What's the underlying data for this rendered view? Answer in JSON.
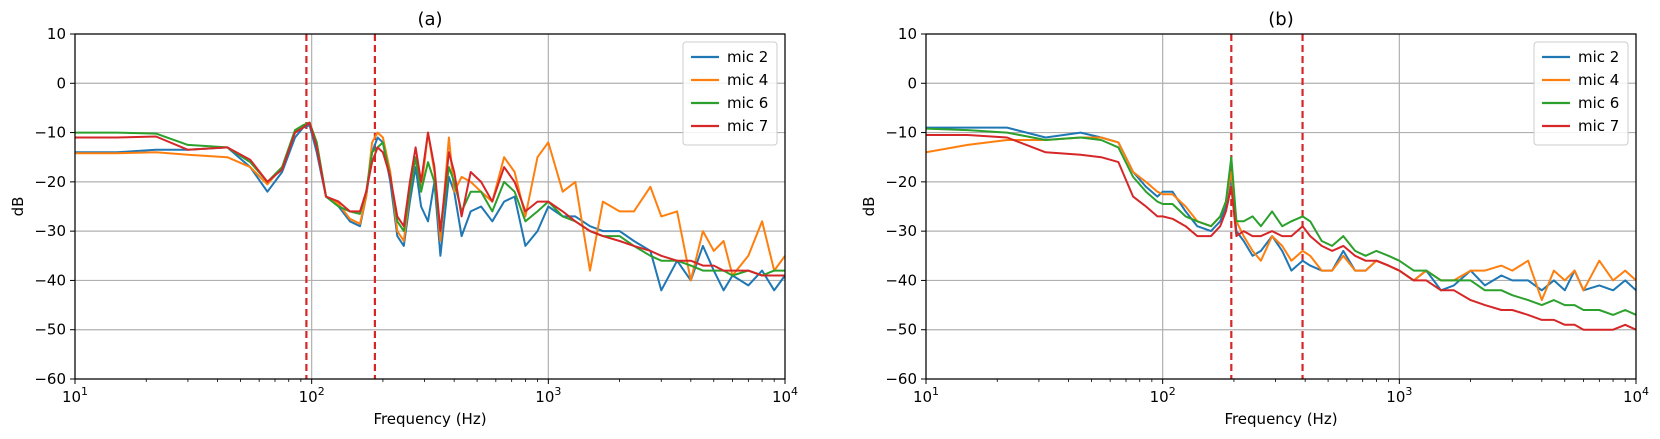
{
  "chart_data": [
    {
      "type": "line",
      "title": "(a)",
      "xlabel": "Frequency (Hz)",
      "ylabel": "dB",
      "xscale": "log",
      "xlim": [
        10,
        10000
      ],
      "ylim": [
        -60,
        10
      ],
      "yticks": [
        10,
        0,
        -10,
        -20,
        -30,
        -40,
        -50,
        -60
      ],
      "ytick_labels": [
        "10",
        "0",
        "−10",
        "−20",
        "−30",
        "−40",
        "−50",
        "−60"
      ],
      "xticks": [
        10,
        100,
        1000,
        10000
      ],
      "xtick_bases": [
        "10",
        "10",
        "10",
        "10"
      ],
      "xtick_exps": [
        "1",
        "2",
        "3",
        "4"
      ],
      "grid": true,
      "legend_position": "top-right",
      "vlines": [
        {
          "x": 95,
          "color": "#d62728",
          "style": "dashed"
        },
        {
          "x": 185,
          "color": "#d62728",
          "style": "dashed"
        }
      ],
      "series": [
        {
          "name": "mic 2",
          "color": "#1f77b4",
          "x": [
            10,
            15,
            22,
            30,
            44,
            55,
            65,
            75,
            85,
            92,
            98,
            105,
            115,
            130,
            145,
            160,
            170,
            180,
            190,
            200,
            215,
            230,
            245,
            260,
            275,
            290,
            310,
            330,
            350,
            380,
            400,
            430,
            470,
            520,
            580,
            650,
            720,
            800,
            900,
            1000,
            1150,
            1300,
            1500,
            1700,
            2000,
            2300,
            2700,
            3000,
            3500,
            4000,
            4500,
            5000,
            5500,
            6000,
            7000,
            8000,
            9000,
            10000
          ],
          "y": [
            -14,
            -14,
            -13.5,
            -13.5,
            -13,
            -17,
            -22,
            -18,
            -11,
            -9,
            -8.5,
            -14,
            -23,
            -25,
            -28,
            -29,
            -23,
            -14,
            -11,
            -12,
            -20,
            -31,
            -33,
            -24,
            -17,
            -25,
            -28,
            -20,
            -35,
            -19,
            -22,
            -31,
            -26,
            -25,
            -28,
            -24,
            -23,
            -33,
            -30,
            -25,
            -27,
            -27,
            -29,
            -30,
            -30,
            -32,
            -34,
            -42,
            -36,
            -40,
            -33,
            -38,
            -42,
            -39,
            -41,
            -38,
            -42,
            -39
          ]
        },
        {
          "name": "mic 4",
          "color": "#ff7f0e",
          "x": [
            10,
            15,
            22,
            30,
            44,
            55,
            65,
            75,
            85,
            92,
            98,
            105,
            115,
            130,
            145,
            160,
            170,
            180,
            190,
            200,
            215,
            230,
            245,
            260,
            275,
            290,
            310,
            330,
            350,
            380,
            400,
            430,
            470,
            520,
            580,
            650,
            720,
            800,
            900,
            1000,
            1150,
            1300,
            1500,
            1700,
            2000,
            2300,
            2700,
            3000,
            3500,
            4000,
            4500,
            5000,
            5500,
            6000,
            7000,
            8000,
            9000,
            10000
          ],
          "y": [
            -14.2,
            -14.2,
            -14,
            -14.5,
            -15,
            -17,
            -20.5,
            -17,
            -10,
            -8.5,
            -8,
            -12,
            -23,
            -24.5,
            -27.5,
            -28.5,
            -23,
            -12,
            -10,
            -11,
            -18,
            -30,
            -32,
            -22,
            -15,
            -22,
            -10,
            -18,
            -32,
            -11,
            -22,
            -19,
            -20,
            -22,
            -24,
            -15,
            -18,
            -27,
            -15,
            -12,
            -22,
            -20,
            -38,
            -24,
            -26,
            -26,
            -21,
            -27,
            -26,
            -40,
            -30,
            -34,
            -32,
            -39,
            -35,
            -28,
            -38,
            -35
          ]
        },
        {
          "name": "mic 6",
          "color": "#2ca02c",
          "x": [
            10,
            15,
            22,
            30,
            44,
            55,
            65,
            75,
            85,
            92,
            98,
            105,
            115,
            130,
            145,
            160,
            170,
            180,
            190,
            200,
            215,
            230,
            245,
            260,
            275,
            290,
            310,
            330,
            350,
            380,
            400,
            430,
            470,
            520,
            580,
            650,
            720,
            800,
            900,
            1000,
            1150,
            1300,
            1500,
            1700,
            2000,
            2300,
            2700,
            3000,
            3500,
            4000,
            4500,
            5000,
            5500,
            6000,
            7000,
            8000,
            9000,
            10000
          ],
          "y": [
            -10,
            -10,
            -10.2,
            -12.5,
            -13,
            -16,
            -20,
            -17,
            -9.5,
            -8.5,
            -8,
            -12,
            -23,
            -25,
            -26,
            -26.5,
            -22,
            -14,
            -13,
            -12,
            -19,
            -28,
            -30,
            -22,
            -15,
            -22,
            -16,
            -20,
            -30,
            -17,
            -20,
            -26,
            -22,
            -22,
            -26,
            -20,
            -22,
            -28,
            -26,
            -24,
            -27,
            -28,
            -30,
            -31,
            -31,
            -33,
            -35,
            -36,
            -36,
            -37,
            -38,
            -38,
            -38,
            -39,
            -38,
            -39,
            -38,
            -38
          ]
        },
        {
          "name": "mic 7",
          "color": "#d62728",
          "x": [
            10,
            15,
            22,
            30,
            44,
            55,
            65,
            75,
            85,
            92,
            98,
            105,
            115,
            130,
            145,
            160,
            170,
            180,
            190,
            200,
            215,
            230,
            245,
            260,
            275,
            290,
            310,
            330,
            350,
            380,
            400,
            430,
            470,
            520,
            580,
            650,
            720,
            800,
            900,
            1000,
            1150,
            1300,
            1500,
            1700,
            2000,
            2300,
            2700,
            3000,
            3500,
            4000,
            4500,
            5000,
            5500,
            6000,
            7000,
            8000,
            9000,
            10000
          ],
          "y": [
            -11,
            -11,
            -10.8,
            -13.5,
            -13,
            -15.5,
            -20,
            -17.5,
            -10,
            -9,
            -8,
            -13,
            -23,
            -24,
            -26,
            -26,
            -22,
            -16,
            -13,
            -14,
            -19,
            -27,
            -29,
            -20,
            -13,
            -20,
            -10,
            -17,
            -30,
            -14,
            -18,
            -27,
            -18,
            -20,
            -24,
            -17,
            -20,
            -26,
            -24,
            -24,
            -26,
            -28,
            -30,
            -31,
            -32,
            -33,
            -34,
            -35,
            -36,
            -36,
            -37,
            -37,
            -38,
            -38,
            -38,
            -39,
            -39,
            -39
          ]
        }
      ]
    },
    {
      "type": "line",
      "title": "(b)",
      "xlabel": "Frequency (Hz)",
      "ylabel": "dB",
      "xscale": "log",
      "xlim": [
        10,
        10000
      ],
      "ylim": [
        -60,
        10
      ],
      "yticks": [
        10,
        0,
        -10,
        -20,
        -30,
        -40,
        -50,
        -60
      ],
      "ytick_labels": [
        "10",
        "0",
        "−10",
        "−20",
        "−30",
        "−40",
        "−50",
        "−60"
      ],
      "xticks": [
        10,
        100,
        1000,
        10000
      ],
      "xtick_bases": [
        "10",
        "10",
        "10",
        "10"
      ],
      "xtick_exps": [
        "1",
        "2",
        "3",
        "4"
      ],
      "grid": true,
      "legend_position": "top-right",
      "vlines": [
        {
          "x": 195,
          "color": "#d62728",
          "style": "dashed"
        },
        {
          "x": 390,
          "color": "#d62728",
          "style": "dashed"
        }
      ],
      "series": [
        {
          "name": "mic 2",
          "color": "#1f77b4",
          "x": [
            10,
            15,
            22,
            32,
            45,
            55,
            65,
            75,
            85,
            95,
            100,
            110,
            125,
            140,
            160,
            175,
            185,
            195,
            205,
            220,
            240,
            260,
            290,
            320,
            350,
            390,
            420,
            470,
            520,
            580,
            650,
            720,
            800,
            900,
            1000,
            1150,
            1300,
            1500,
            1700,
            2000,
            2300,
            2700,
            3000,
            3500,
            4000,
            4500,
            5000,
            5500,
            6000,
            7000,
            8000,
            9000,
            10000
          ],
          "y": [
            -9,
            -9,
            -9,
            -11,
            -10,
            -11,
            -12,
            -18,
            -21,
            -23,
            -22,
            -22,
            -26,
            -29,
            -30,
            -28,
            -25,
            -19,
            -30,
            -32,
            -35,
            -34,
            -31,
            -34,
            -38,
            -36,
            -37,
            -38,
            -38,
            -34,
            -38,
            -38,
            -36,
            -37,
            -38,
            -40,
            -38,
            -42,
            -41,
            -38,
            -41,
            -39,
            -40,
            -40,
            -42,
            -40,
            -42,
            -38,
            -42,
            -41,
            -42,
            -40,
            -42
          ]
        },
        {
          "name": "mic 4",
          "color": "#ff7f0e",
          "x": [
            10,
            15,
            22,
            32,
            45,
            55,
            65,
            75,
            85,
            95,
            100,
            110,
            125,
            140,
            160,
            175,
            185,
            195,
            205,
            220,
            240,
            260,
            290,
            320,
            350,
            390,
            420,
            470,
            520,
            580,
            650,
            720,
            800,
            900,
            1000,
            1150,
            1300,
            1500,
            1700,
            2000,
            2300,
            2700,
            3000,
            3500,
            4000,
            4500,
            5000,
            5500,
            6000,
            7000,
            8000,
            9000,
            10000
          ],
          "y": [
            -14,
            -12.5,
            -11.5,
            -11.5,
            -11,
            -11,
            -12,
            -18,
            -20,
            -22,
            -22.5,
            -22.5,
            -25,
            -28,
            -29,
            -27,
            -24,
            -18,
            -28,
            -31,
            -34,
            -36,
            -31,
            -33,
            -36,
            -34,
            -35,
            -38,
            -38,
            -35,
            -38,
            -38,
            -36,
            -37,
            -38,
            -40,
            -38,
            -40,
            -40,
            -38,
            -38,
            -37,
            -38,
            -36,
            -44,
            -38,
            -40,
            -38,
            -42,
            -36,
            -40,
            -38,
            -40
          ]
        },
        {
          "name": "mic 6",
          "color": "#2ca02c",
          "x": [
            10,
            15,
            22,
            32,
            45,
            55,
            65,
            75,
            85,
            95,
            100,
            110,
            125,
            140,
            160,
            175,
            185,
            195,
            205,
            220,
            240,
            260,
            290,
            320,
            350,
            390,
            420,
            470,
            520,
            580,
            650,
            720,
            800,
            900,
            1000,
            1150,
            1300,
            1500,
            1700,
            2000,
            2300,
            2700,
            3000,
            3500,
            4000,
            4500,
            5000,
            5500,
            6000,
            7000,
            8000,
            9000,
            10000
          ],
          "y": [
            -9.2,
            -9.5,
            -10,
            -11.5,
            -11,
            -11.5,
            -13,
            -19,
            -22,
            -24,
            -24.5,
            -24.5,
            -27,
            -28,
            -29,
            -27,
            -24,
            -15,
            -28,
            -28,
            -27,
            -29,
            -26,
            -29,
            -28,
            -27,
            -28,
            -32,
            -33,
            -31,
            -34,
            -35,
            -34,
            -35,
            -36,
            -38,
            -38,
            -40,
            -40,
            -40,
            -42,
            -42,
            -43,
            -44,
            -45,
            -44,
            -45,
            -45,
            -46,
            -46,
            -47,
            -46,
            -47
          ]
        },
        {
          "name": "mic 7",
          "color": "#d62728",
          "x": [
            10,
            15,
            22,
            32,
            45,
            55,
            65,
            75,
            85,
            95,
            100,
            110,
            125,
            140,
            160,
            175,
            185,
            195,
            205,
            220,
            240,
            260,
            290,
            320,
            350,
            390,
            420,
            470,
            520,
            580,
            650,
            720,
            800,
            900,
            1000,
            1150,
            1300,
            1500,
            1700,
            2000,
            2300,
            2700,
            3000,
            3500,
            4000,
            4500,
            5000,
            5500,
            6000,
            7000,
            8000,
            9000,
            10000
          ],
          "y": [
            -10.5,
            -10.5,
            -11,
            -14,
            -14.5,
            -15,
            -16,
            -23,
            -25,
            -27,
            -27,
            -27.5,
            -29,
            -31,
            -31,
            -29,
            -26,
            -21,
            -31,
            -30,
            -31,
            -31,
            -30,
            -31,
            -31,
            -29,
            -31,
            -33,
            -34,
            -33,
            -35,
            -36,
            -36,
            -37,
            -38,
            -40,
            -40,
            -42,
            -42,
            -44,
            -45,
            -46,
            -46,
            -47,
            -48,
            -48,
            -49,
            -49,
            -50,
            -50,
            -50,
            -49,
            -50
          ]
        }
      ]
    }
  ]
}
